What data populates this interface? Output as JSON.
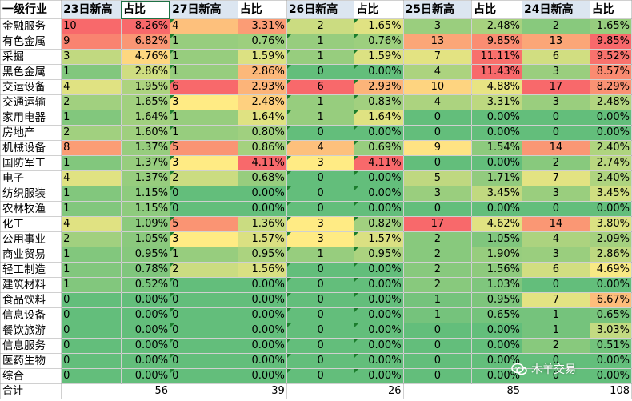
{
  "headers": [
    "一级行业",
    "23日新高",
    "占比",
    "27日新高",
    "占比",
    "26日新高",
    "占比",
    "25日新高",
    "占比",
    "24日新高",
    "占比"
  ],
  "rows": [
    {
      "industry": "金融服务",
      "v": [
        [
          "10",
          "8.26%"
        ],
        [
          "4",
          "3.31%"
        ],
        [
          "2",
          "1.65%"
        ],
        [
          "3",
          "2.48%"
        ],
        [
          "2",
          "1.65%"
        ]
      ]
    },
    {
      "industry": "有色金属",
      "v": [
        [
          "9",
          "6.82%"
        ],
        [
          "1",
          "0.76%"
        ],
        [
          "1",
          "0.76%"
        ],
        [
          "13",
          "9.85%"
        ],
        [
          "13",
          "9.85%"
        ]
      ]
    },
    {
      "industry": "采掘",
      "v": [
        [
          "3",
          "4.76%"
        ],
        [
          "1",
          "1.59%"
        ],
        [
          "1",
          "1.59%"
        ],
        [
          "7",
          "11.11%"
        ],
        [
          "6",
          "9.52%"
        ]
      ]
    },
    {
      "industry": "黑色金属",
      "v": [
        [
          "1",
          "2.86%"
        ],
        [
          "1",
          "2.86%"
        ],
        [
          "0",
          "0.00%"
        ],
        [
          "4",
          "11.43%"
        ],
        [
          "3",
          "8.57%"
        ]
      ]
    },
    {
      "industry": "交运设备",
      "v": [
        [
          "4",
          "1.95%"
        ],
        [
          "6",
          "2.93%"
        ],
        [
          "6",
          "2.93%"
        ],
        [
          "10",
          "4.88%"
        ],
        [
          "17",
          "8.29%"
        ]
      ]
    },
    {
      "industry": "交通运输",
      "v": [
        [
          "2",
          "1.65%"
        ],
        [
          "3",
          "2.48%"
        ],
        [
          "1",
          "0.83%"
        ],
        [
          "4",
          "3.31%"
        ],
        [
          "3",
          "2.48%"
        ]
      ]
    },
    {
      "industry": "家用电器",
      "v": [
        [
          "1",
          "1.64%"
        ],
        [
          "1",
          "1.64%"
        ],
        [
          "1",
          "1.64%"
        ],
        [
          "0",
          "0.00%"
        ],
        [
          "0",
          "0.00%"
        ]
      ]
    },
    {
      "industry": "房地产",
      "v": [
        [
          "2",
          "1.60%"
        ],
        [
          "1",
          "0.80%"
        ],
        [
          "0",
          "0.00%"
        ],
        [
          "0",
          "0.00%"
        ],
        [
          "0",
          "0.00%"
        ]
      ]
    },
    {
      "industry": "机械设备",
      "v": [
        [
          "8",
          "1.37%"
        ],
        [
          "5",
          "0.86%"
        ],
        [
          "4",
          "0.69%"
        ],
        [
          "9",
          "1.54%"
        ],
        [
          "14",
          "2.40%"
        ]
      ]
    },
    {
      "industry": "国防军工",
      "v": [
        [
          "1",
          "1.37%"
        ],
        [
          "3",
          "4.11%"
        ],
        [
          "3",
          "4.11%"
        ],
        [
          "0",
          "0.00%"
        ],
        [
          "2",
          "2.74%"
        ]
      ]
    },
    {
      "industry": "电子",
      "v": [
        [
          "4",
          "1.37%"
        ],
        [
          "2",
          "0.68%"
        ],
        [
          "0",
          "0.00%"
        ],
        [
          "5",
          "1.71%"
        ],
        [
          "7",
          "2.40%"
        ]
      ]
    },
    {
      "industry": "纺织服装",
      "v": [
        [
          "1",
          "1.15%"
        ],
        [
          "0",
          "0.00%"
        ],
        [
          "0",
          "0.00%"
        ],
        [
          "3",
          "3.45%"
        ],
        [
          "3",
          "3.45%"
        ]
      ]
    },
    {
      "industry": "农林牧渔",
      "v": [
        [
          "1",
          "1.15%"
        ],
        [
          "0",
          "0.00%"
        ],
        [
          "0",
          "0.00%"
        ],
        [
          "0",
          "0.00%"
        ],
        [
          "0",
          "0.00%"
        ]
      ]
    },
    {
      "industry": "化工",
      "v": [
        [
          "4",
          "1.09%"
        ],
        [
          "5",
          "1.36%"
        ],
        [
          "3",
          "0.82%"
        ],
        [
          "17",
          "4.62%"
        ],
        [
          "14",
          "3.80%"
        ]
      ]
    },
    {
      "industry": "公用事业",
      "v": [
        [
          "2",
          "1.05%"
        ],
        [
          "3",
          "1.57%"
        ],
        [
          "3",
          "1.57%"
        ],
        [
          "2",
          "1.05%"
        ],
        [
          "4",
          "2.09%"
        ]
      ]
    },
    {
      "industry": "商业贸易",
      "v": [
        [
          "1",
          "0.95%"
        ],
        [
          "1",
          "0.95%"
        ],
        [
          "1",
          "0.95%"
        ],
        [
          "2",
          "1.90%"
        ],
        [
          "3",
          "2.86%"
        ]
      ]
    },
    {
      "industry": "轻工制造",
      "v": [
        [
          "1",
          "0.78%"
        ],
        [
          "2",
          "1.56%"
        ],
        [
          "0",
          "0.00%"
        ],
        [
          "2",
          "1.56%"
        ],
        [
          "6",
          "4.69%"
        ]
      ]
    },
    {
      "industry": "建筑材料",
      "v": [
        [
          "1",
          "0.52%"
        ],
        [
          "0",
          "0.00%"
        ],
        [
          "0",
          "0.00%"
        ],
        [
          "2",
          "1.03%"
        ],
        [
          "0",
          "0.00%"
        ]
      ]
    },
    {
      "industry": "食品饮料",
      "v": [
        [
          "0",
          "0.00%"
        ],
        [
          "0",
          "0.00%"
        ],
        [
          "0",
          "0.00%"
        ],
        [
          "1",
          "0.95%"
        ],
        [
          "7",
          "6.67%"
        ]
      ]
    },
    {
      "industry": "信息设备",
      "v": [
        [
          "0",
          "0.00%"
        ],
        [
          "0",
          "0.00%"
        ],
        [
          "0",
          "0.00%"
        ],
        [
          "1",
          "0.65%"
        ],
        [
          "1",
          "0.65%"
        ]
      ]
    },
    {
      "industry": "餐饮旅游",
      "v": [
        [
          "0",
          "0.00%"
        ],
        [
          "0",
          "0.00%"
        ],
        [
          "0",
          "0.00%"
        ],
        [
          "0",
          "0.00%"
        ],
        [
          "1",
          "3.03%"
        ]
      ]
    },
    {
      "industry": "信息服务",
      "v": [
        [
          "0",
          "0.00%"
        ],
        [
          "0",
          "0.00%"
        ],
        [
          "0",
          "0.00%"
        ],
        [
          "0",
          "0.00%"
        ],
        [
          "2",
          "0.51%"
        ]
      ]
    },
    {
      "industry": "医药生物",
      "v": [
        [
          "0",
          "0.00%"
        ],
        [
          "0",
          "0.00%"
        ],
        [
          "0",
          "0.00%"
        ],
        [
          "0",
          "0.00%"
        ],
        [
          "0",
          "0.00%"
        ]
      ]
    },
    {
      "industry": "综合",
      "v": [
        [
          "0",
          "0.00%"
        ],
        [
          "0",
          "0.00%"
        ],
        [
          "0",
          "0.00%"
        ],
        [
          "0",
          "0.00%"
        ],
        [
          "0",
          "0.00%"
        ]
      ]
    }
  ],
  "total": {
    "label": "合计",
    "values": [
      "56",
      "39",
      "26",
      "85",
      "108"
    ]
  },
  "colors": {
    "high": "#f8696b",
    "mid": "#ffeb84",
    "low": "#63be7b"
  },
  "watermark": {
    "text": "木羊交易",
    "icon": "wechat-icon"
  }
}
